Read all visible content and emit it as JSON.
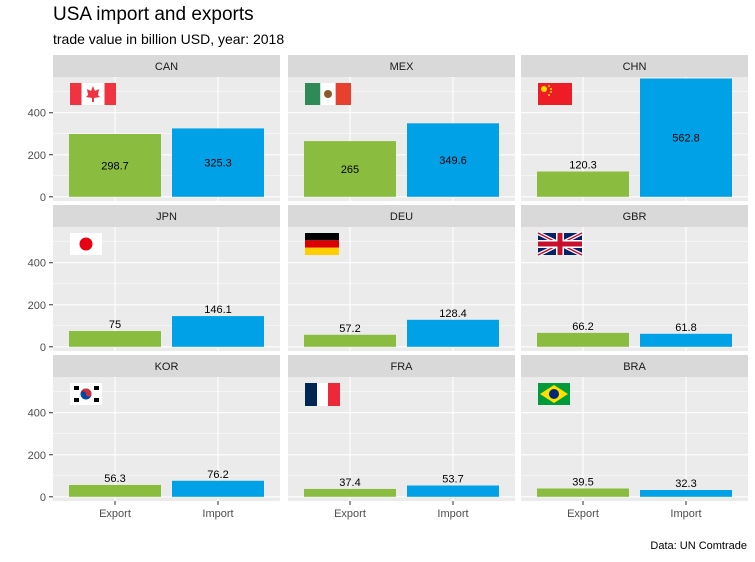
{
  "title": "USA import and exports",
  "subtitle": "trade value in billion USD, year: 2018",
  "caption": "Data: UN Comtrade",
  "colors": {
    "export": "#8ABD3F",
    "import": "#00A1E6",
    "panel_bg": "#EBEBEB",
    "strip_bg": "#D9D9D9",
    "grid": "#FFFFFF"
  },
  "chart_data": {
    "type": "bar",
    "facets": true,
    "categories": [
      "Export",
      "Import"
    ],
    "y_ticks": [
      0,
      200,
      400
    ],
    "ylim": [
      -20,
      570
    ],
    "grid": true,
    "panels": [
      {
        "country": "CAN",
        "flag": "canada-flag",
        "values": [
          298.7,
          325.3
        ],
        "labels": [
          "298.7",
          "325.3"
        ]
      },
      {
        "country": "MEX",
        "flag": "mexico-flag",
        "values": [
          265,
          349.6
        ],
        "labels": [
          "265",
          "349.6"
        ]
      },
      {
        "country": "CHN",
        "flag": "china-flag",
        "values": [
          120.3,
          562.8
        ],
        "labels": [
          "120.3",
          "562.8"
        ]
      },
      {
        "country": "JPN",
        "flag": "japan-flag",
        "values": [
          75,
          146.1
        ],
        "labels": [
          "75",
          "146.1"
        ]
      },
      {
        "country": "DEU",
        "flag": "germany-flag",
        "values": [
          57.2,
          128.4
        ],
        "labels": [
          "57.2",
          "128.4"
        ]
      },
      {
        "country": "GBR",
        "flag": "uk-flag",
        "values": [
          66.2,
          61.8
        ],
        "labels": [
          "66.2",
          "61.8"
        ]
      },
      {
        "country": "KOR",
        "flag": "korea-flag",
        "values": [
          56.3,
          76.2
        ],
        "labels": [
          "56.3",
          "76.2"
        ]
      },
      {
        "country": "FRA",
        "flag": "france-flag",
        "values": [
          37.4,
          53.7
        ],
        "labels": [
          "37.4",
          "53.7"
        ]
      },
      {
        "country": "BRA",
        "flag": "brazil-flag",
        "values": [
          39.5,
          32.3
        ],
        "labels": [
          "39.5",
          "32.3"
        ]
      }
    ]
  }
}
